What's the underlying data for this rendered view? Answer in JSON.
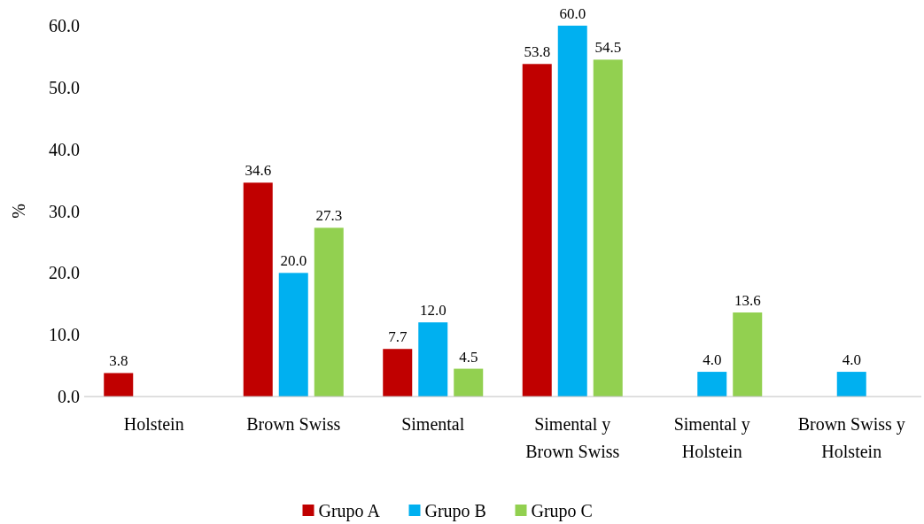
{
  "chart_data": {
    "type": "bar",
    "ylabel": "%",
    "categories": [
      "Holstein",
      "Brown Swiss",
      "Simental",
      "Simental y Brown Swiss",
      "Simental y Holstein",
      "Brown Swiss y Holstein"
    ],
    "series": [
      {
        "name": "Grupo A",
        "color": "#c00000",
        "values": [
          3.8,
          34.6,
          7.7,
          53.8,
          null,
          null
        ],
        "value_labels": [
          "3.8",
          "34.6",
          "7.7",
          "53.8",
          null,
          null
        ]
      },
      {
        "name": "Grupo B",
        "color": "#00b0f0",
        "values": [
          null,
          20.0,
          12.0,
          60.0,
          4.0,
          4.0
        ],
        "value_labels": [
          null,
          "20.0",
          "12.0",
          "60.0",
          "4.0",
          "4.0"
        ]
      },
      {
        "name": "Grupo C",
        "color": "#92d050",
        "values": [
          null,
          27.3,
          4.5,
          54.5,
          13.6,
          null
        ],
        "value_labels": [
          null,
          "27.3",
          "4.5",
          "54.5",
          "13.6",
          null
        ]
      }
    ],
    "ylim": [
      0,
      60
    ],
    "yticks": [
      {
        "value": 0,
        "label": "0.0"
      },
      {
        "value": 10,
        "label": "10.0"
      },
      {
        "value": 20,
        "label": "20.0"
      },
      {
        "value": 30,
        "label": "30.0"
      },
      {
        "value": 40,
        "label": "40.0"
      },
      {
        "value": 50,
        "label": "50.0"
      },
      {
        "value": 60,
        "label": "60.0"
      }
    ],
    "grid": false,
    "legend": "bottom"
  }
}
